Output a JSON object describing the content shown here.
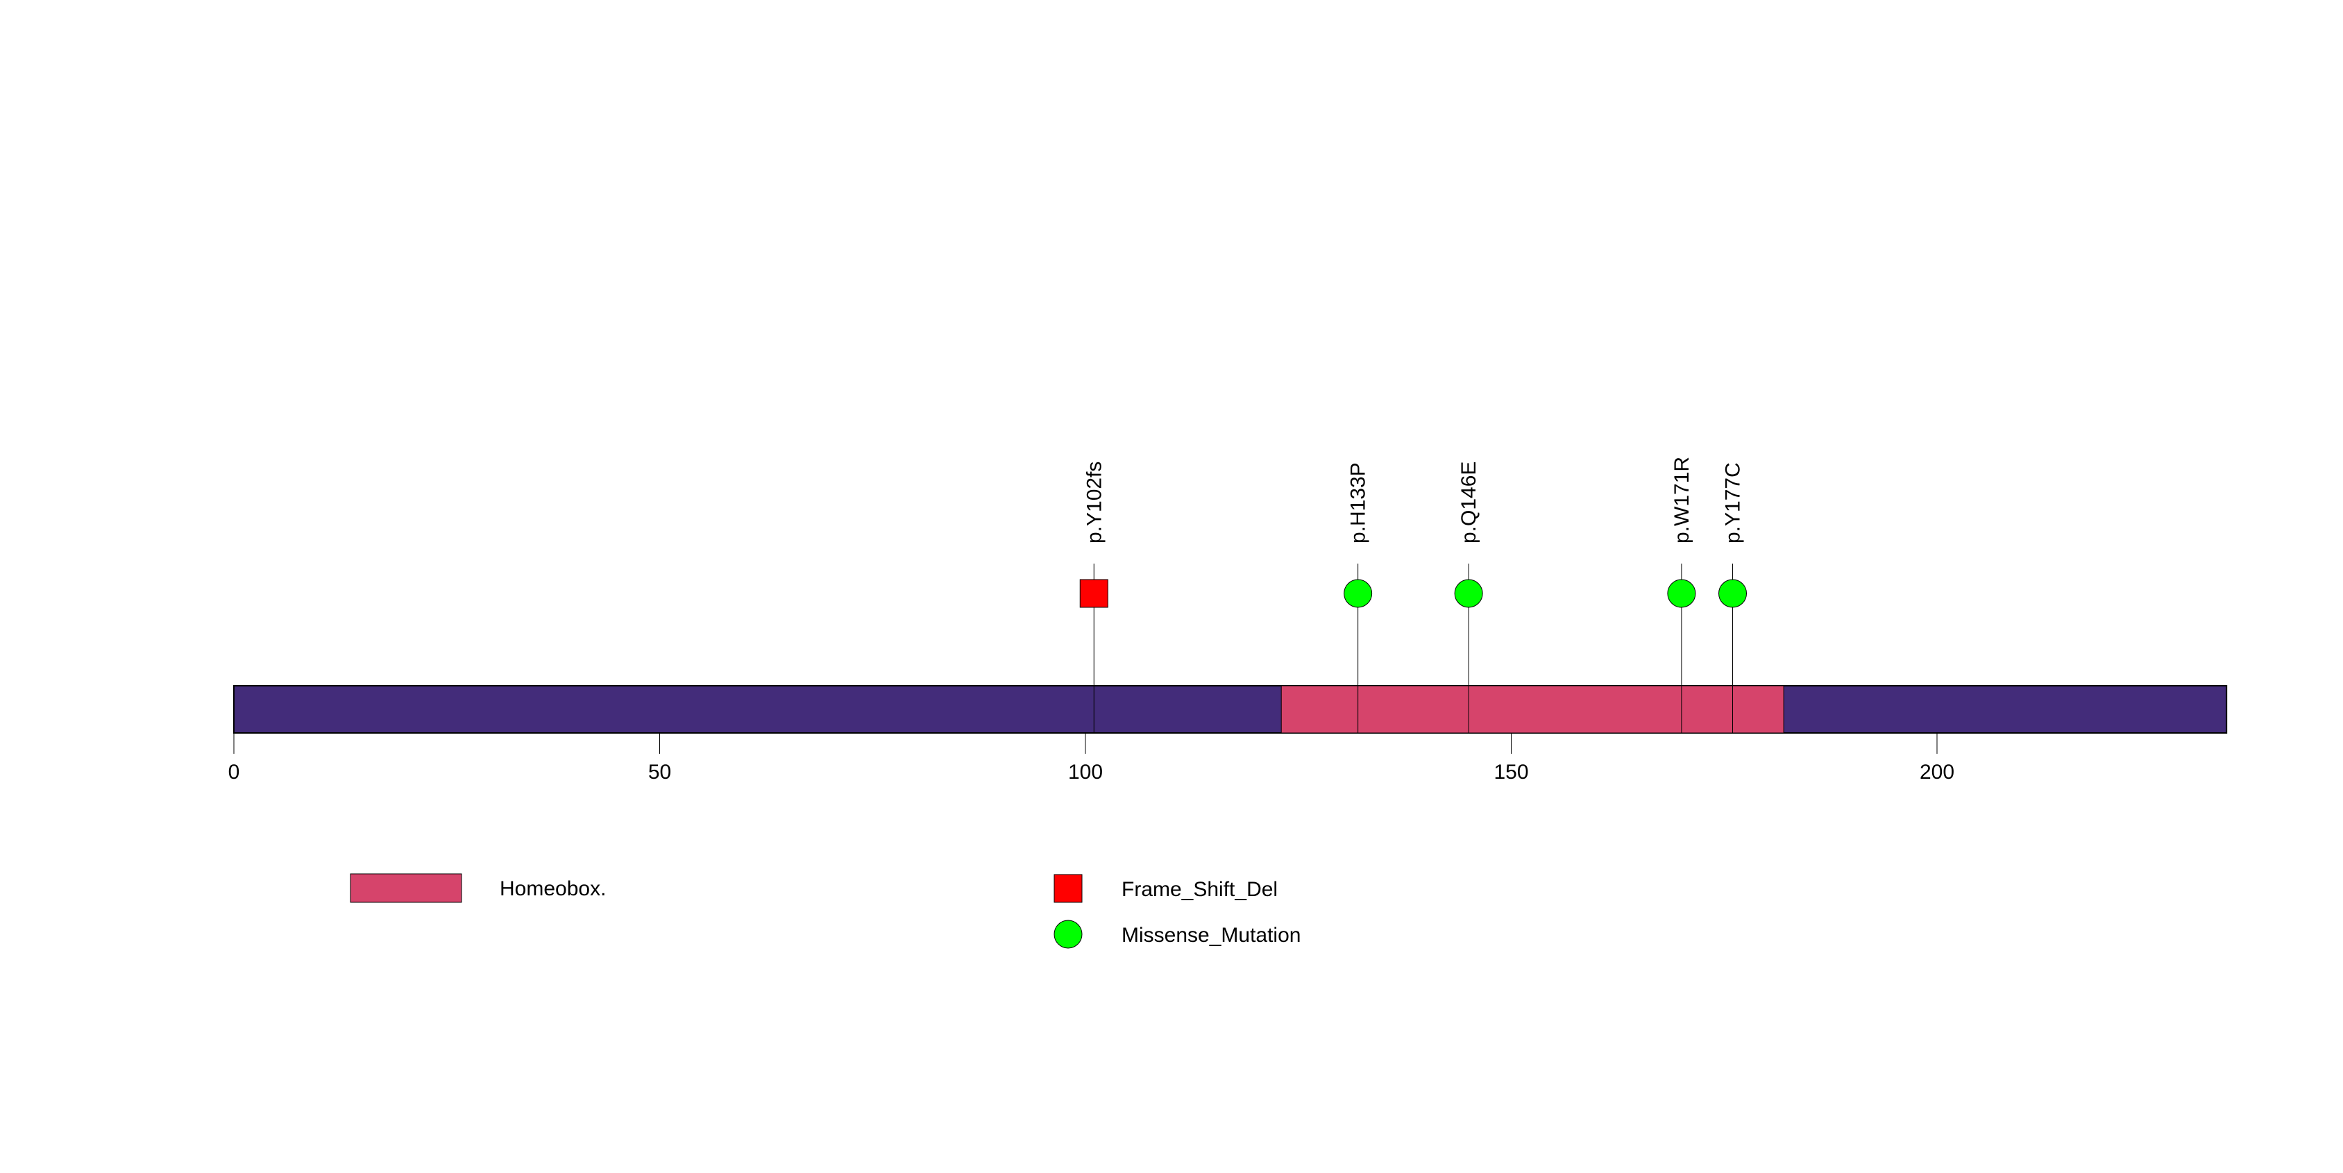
{
  "chart_data": {
    "type": "lollipop",
    "protein_length": 234,
    "xlim": [
      0,
      234
    ],
    "x_ticks": [
      0,
      50,
      100,
      150,
      200
    ],
    "x_tick_labels": [
      "0",
      "50",
      "100",
      "150",
      "200"
    ],
    "backbone_color": "#432C7A",
    "domains": [
      {
        "name": "Homeobox.",
        "start": 123,
        "end": 182,
        "color": "#D6446B"
      }
    ],
    "mutations": [
      {
        "label": "p.Y102fs",
        "position": 102,
        "type": "Frame_Shift_Del"
      },
      {
        "label": "p.H133P",
        "position": 133,
        "type": "Missense_Mutation"
      },
      {
        "label": "p.Q146E",
        "position": 146,
        "type": "Missense_Mutation"
      },
      {
        "label": "p.W171R",
        "position": 171,
        "type": "Missense_Mutation"
      },
      {
        "label": "p.Y177C",
        "position": 177,
        "type": "Missense_Mutation"
      }
    ],
    "mutation_types": [
      {
        "name": "Frame_Shift_Del",
        "shape": "square",
        "color": "#FF0000"
      },
      {
        "name": "Missense_Mutation",
        "shape": "circle",
        "color": "#00FF00"
      }
    ],
    "legend": {
      "domains": [
        "Homeobox."
      ],
      "mutation_types": [
        "Frame_Shift_Del",
        "Missense_Mutation"
      ]
    }
  }
}
